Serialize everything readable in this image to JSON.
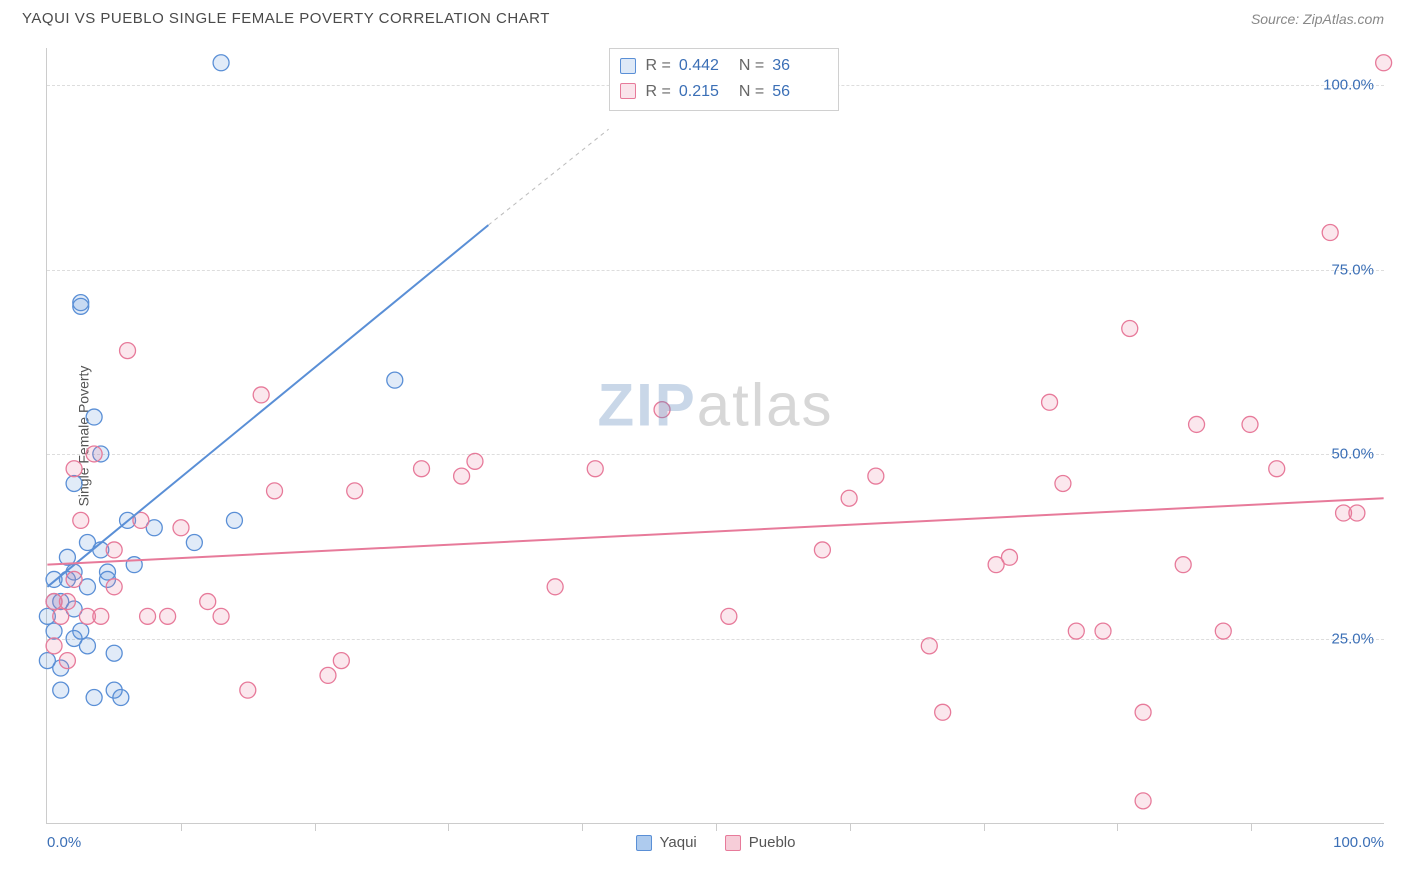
{
  "header": {
    "title": "YAQUI VS PUEBLO SINGLE FEMALE POVERTY CORRELATION CHART",
    "source": "Source: ZipAtlas.com"
  },
  "chart": {
    "type": "scatter",
    "ylabel": "Single Female Poverty",
    "xlim": [
      0,
      100
    ],
    "ylim": [
      0,
      105
    ],
    "xtick_label_min": "0.0%",
    "xtick_label_max": "100.0%",
    "ytick_labels": [
      {
        "v": 25,
        "label": "25.0%"
      },
      {
        "v": 50,
        "label": "50.0%"
      },
      {
        "v": 75,
        "label": "75.0%"
      },
      {
        "v": 100,
        "label": "100.0%"
      }
    ],
    "xtick_positions": [
      10,
      20,
      30,
      40,
      50,
      60,
      70,
      80,
      90
    ],
    "background_color": "#ffffff",
    "grid_color": "#dddddd",
    "axis_color": "#cccccc",
    "marker_radius": 8,
    "marker_fill_opacity": 0.18,
    "marker_stroke_width": 1.3,
    "watermark": {
      "z": "ZIP",
      "rest": "atlas"
    },
    "series": [
      {
        "name": "Yaqui",
        "color_stroke": "#5a8fd6",
        "color_fill": "#5a8fd6",
        "r_label": "R = ",
        "r_value": "0.442",
        "n_label": "N = ",
        "n_value": "36",
        "trend": {
          "x1": 0,
          "y1": 32,
          "x2": 33,
          "y2": 81,
          "dash_x2": 42,
          "dash_y2": 94
        },
        "points": [
          [
            0,
            22
          ],
          [
            0,
            28
          ],
          [
            0.5,
            30
          ],
          [
            0.5,
            26
          ],
          [
            0.5,
            33
          ],
          [
            1,
            18
          ],
          [
            1,
            21
          ],
          [
            1,
            30
          ],
          [
            1.5,
            36
          ],
          [
            1.5,
            33
          ],
          [
            2,
            34
          ],
          [
            2,
            29
          ],
          [
            2,
            46
          ],
          [
            2,
            25
          ],
          [
            2.5,
            70
          ],
          [
            2.5,
            70.5
          ],
          [
            2.5,
            26
          ],
          [
            3,
            38
          ],
          [
            3,
            32
          ],
          [
            3,
            24
          ],
          [
            3.5,
            17
          ],
          [
            3.5,
            55
          ],
          [
            4,
            50
          ],
          [
            4,
            37
          ],
          [
            4.5,
            34
          ],
          [
            4.5,
            33
          ],
          [
            5,
            23
          ],
          [
            5,
            18
          ],
          [
            5.5,
            17
          ],
          [
            6,
            41
          ],
          [
            6.5,
            35
          ],
          [
            8,
            40
          ],
          [
            11,
            38
          ],
          [
            13,
            103
          ],
          [
            14,
            41
          ],
          [
            26,
            60
          ]
        ]
      },
      {
        "name": "Pueblo",
        "color_stroke": "#e77a9a",
        "color_fill": "#e77a9a",
        "r_label": "R = ",
        "r_value": "0.215",
        "n_label": "N = ",
        "n_value": "56",
        "trend": {
          "x1": 0,
          "y1": 35,
          "x2": 100,
          "y2": 44
        },
        "points": [
          [
            0.5,
            30
          ],
          [
            0.5,
            24
          ],
          [
            1,
            28
          ],
          [
            1.5,
            30
          ],
          [
            1.5,
            22
          ],
          [
            2,
            48
          ],
          [
            2,
            33
          ],
          [
            2.5,
            41
          ],
          [
            3,
            28
          ],
          [
            3.5,
            50
          ],
          [
            4,
            28
          ],
          [
            5,
            32
          ],
          [
            5,
            37
          ],
          [
            6,
            64
          ],
          [
            7,
            41
          ],
          [
            7.5,
            28
          ],
          [
            9,
            28
          ],
          [
            10,
            40
          ],
          [
            12,
            30
          ],
          [
            13,
            28
          ],
          [
            15,
            18
          ],
          [
            16,
            58
          ],
          [
            17,
            45
          ],
          [
            21,
            20
          ],
          [
            22,
            22
          ],
          [
            23,
            45
          ],
          [
            28,
            48
          ],
          [
            31,
            47
          ],
          [
            32,
            49
          ],
          [
            38,
            32
          ],
          [
            41,
            48
          ],
          [
            46,
            56
          ],
          [
            51,
            28
          ],
          [
            58,
            37
          ],
          [
            60,
            44
          ],
          [
            62,
            47
          ],
          [
            66,
            24
          ],
          [
            67,
            15
          ],
          [
            71,
            35
          ],
          [
            72,
            36
          ],
          [
            75,
            57
          ],
          [
            76,
            46
          ],
          [
            77,
            26
          ],
          [
            79,
            26
          ],
          [
            81,
            67
          ],
          [
            82,
            3
          ],
          [
            82,
            15
          ],
          [
            85,
            35
          ],
          [
            86,
            54
          ],
          [
            88,
            26
          ],
          [
            90,
            54
          ],
          [
            92,
            48
          ],
          [
            96,
            80
          ],
          [
            97,
            42
          ],
          [
            98,
            42
          ],
          [
            100,
            103
          ]
        ]
      }
    ],
    "legend": [
      {
        "label": "Yaqui",
        "fill": "#aecbee",
        "stroke": "#5a8fd6"
      },
      {
        "label": "Pueblo",
        "fill": "#f6cdd8",
        "stroke": "#e77a9a"
      }
    ]
  }
}
